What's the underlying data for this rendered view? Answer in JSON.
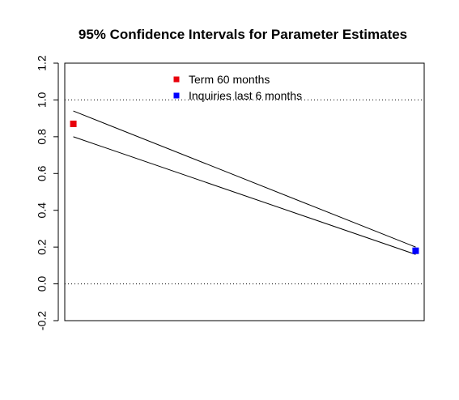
{
  "chart_data": {
    "type": "line",
    "title": "95% Confidence Intervals for Parameter Estimates",
    "xlabel": "",
    "ylabel": "",
    "ylim": [
      -0.2,
      1.2
    ],
    "yticks": [
      -0.2,
      0.0,
      0.2,
      0.4,
      0.6,
      0.8,
      1.0,
      1.2
    ],
    "ytick_labels": [
      "-0.2",
      "0.0",
      "0.2",
      "0.4",
      "0.6",
      "0.8",
      "1.0",
      "1.2"
    ],
    "reference_lines": [
      {
        "y": 1.0,
        "style": "dotted"
      },
      {
        "y": 0.0,
        "style": "dotted"
      }
    ],
    "categories": [
      "Term 60 months",
      "Inquiries last 6 months"
    ],
    "series": [
      {
        "name": "Term 60 months",
        "x": 1,
        "estimate": 0.87,
        "color": "#e8000b"
      },
      {
        "name": "Inquiries last 6 months",
        "x": 2,
        "estimate": 0.18,
        "color": "#0000ff"
      }
    ],
    "interval_lines": [
      {
        "label": "upper",
        "y": [
          0.94,
          0.2
        ]
      },
      {
        "label": "lower",
        "y": [
          0.8,
          0.16
        ]
      }
    ],
    "legend": {
      "position": "top-center",
      "entries": [
        {
          "label": "Term 60 months",
          "color": "#e8000b"
        },
        {
          "label": "Inquiries last 6 months",
          "color": "#0000ff"
        }
      ]
    },
    "grid": false
  }
}
